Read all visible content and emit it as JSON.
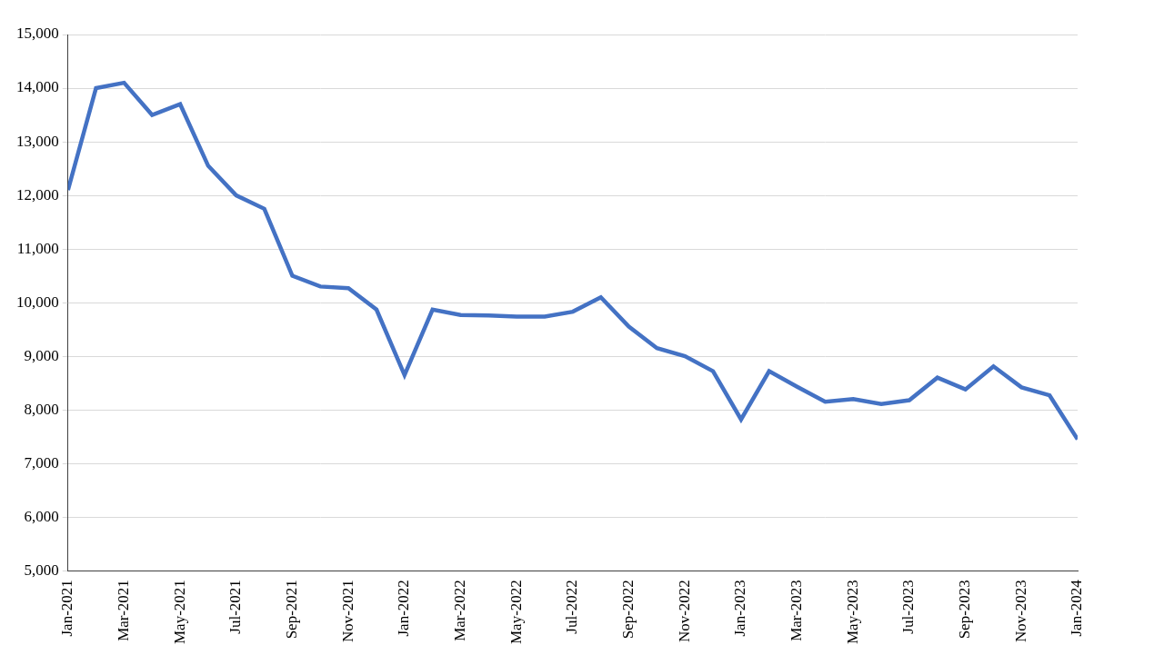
{
  "chart_data": {
    "type": "line",
    "categories": [
      "Jan-2021",
      null,
      "Mar-2021",
      null,
      "May-2021",
      null,
      "Jul-2021",
      null,
      "Sep-2021",
      null,
      "Nov-2021",
      null,
      "Jan-2022",
      null,
      "Mar-2022",
      null,
      "May-2022",
      null,
      "Jul-2022",
      null,
      "Sep-2022",
      null,
      "Nov-2022",
      null,
      "Jan-2023",
      null,
      "Mar-2023",
      null,
      "May-2023",
      null,
      "Jul-2023",
      null,
      "Sep-2023",
      null,
      "Nov-2023",
      null,
      "Jan-2024"
    ],
    "values": [
      12100,
      14000,
      14100,
      13500,
      13700,
      12550,
      12000,
      11750,
      10500,
      10300,
      10270,
      9870,
      8650,
      9870,
      9770,
      9760,
      9740,
      9740,
      9830,
      10100,
      9550,
      9150,
      9000,
      8720,
      7820,
      8720,
      8430,
      8150,
      8200,
      8110,
      8180,
      8600,
      8380,
      8810,
      8420,
      8270,
      7450
    ],
    "color": "#4472c4",
    "ylim": [
      5000,
      15000
    ],
    "yticks": [
      {
        "value": 5000,
        "label": "5,000"
      },
      {
        "value": 6000,
        "label": "6,000"
      },
      {
        "value": 7000,
        "label": "7,000"
      },
      {
        "value": 8000,
        "label": "8,000"
      },
      {
        "value": 9000,
        "label": "9,000"
      },
      {
        "value": 10000,
        "label": "10,000"
      },
      {
        "value": 11000,
        "label": "11,000"
      },
      {
        "value": 12000,
        "label": "12,000"
      },
      {
        "value": 13000,
        "label": "13,000"
      },
      {
        "value": 14000,
        "label": "14,000"
      },
      {
        "value": 15000,
        "label": "15,000"
      }
    ],
    "grid": true
  }
}
